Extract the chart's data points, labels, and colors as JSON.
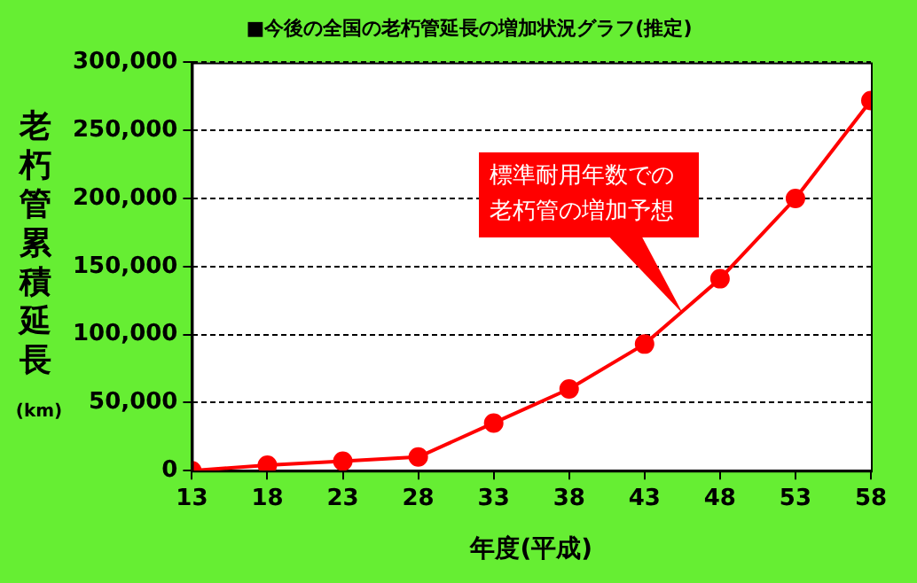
{
  "chart_data": {
    "type": "line",
    "title": "■今後の全国の老朽管延長の増加状況グラフ(推定)",
    "xlabel": "年度(平成)",
    "ylabel": "老朽管累積延長(km)",
    "x": [
      13,
      18,
      23,
      28,
      33,
      38,
      43,
      48,
      53,
      58
    ],
    "series": [
      {
        "color": "#ff0000",
        "values": [
          0,
          4000,
          7000,
          10000,
          35000,
          60000,
          93000,
          141000,
          200000,
          272000
        ]
      }
    ],
    "xlim": [
      13,
      58
    ],
    "xticks": [
      13,
      18,
      23,
      28,
      33,
      38,
      43,
      48,
      53,
      58
    ],
    "ylim": [
      0,
      300000
    ],
    "yticks": [
      0,
      {
        "value": 50000,
        "label": "50,000"
      },
      {
        "value": 100000,
        "label": "100,000"
      },
      {
        "value": 150000,
        "label": "150,000"
      },
      {
        "value": 200000,
        "label": "200,000"
      },
      {
        "value": 250000,
        "label": "250,000"
      },
      {
        "value": 300000,
        "label": "300,000"
      }
    ],
    "annotations": [
      "標準耐用年数での老朽管の増加予想"
    ],
    "grid": "y",
    "legend": false,
    "marker": "circle",
    "line_style": "solid"
  }
}
